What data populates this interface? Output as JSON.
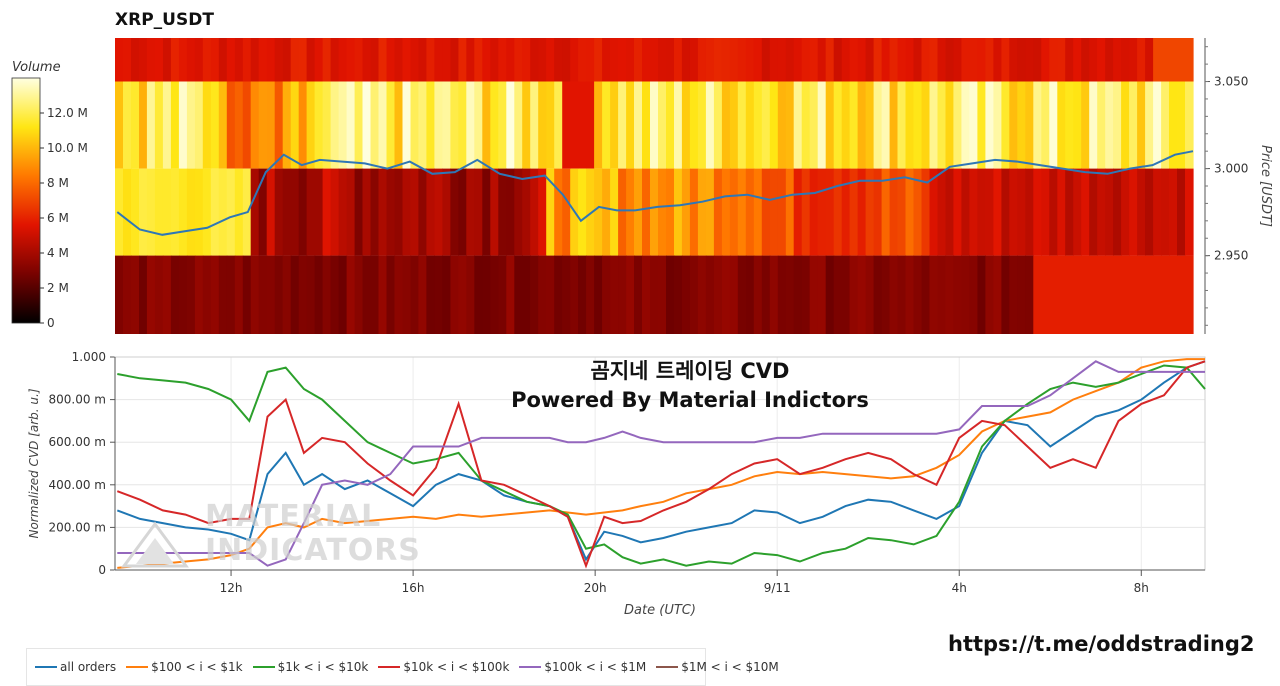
{
  "header": {
    "title": "XRP_USDT"
  },
  "heatmap": {
    "colorbar_label": "Volume",
    "colorbar_ticks": [
      "12.0 M",
      "10.0 M",
      "8 M",
      "6 M",
      "4 M",
      "2 M",
      "0"
    ],
    "y_label": "Price [USDT]",
    "y_ticks": [
      "3.050",
      "3.000",
      "2.950"
    ]
  },
  "overlay": {
    "line1": "곰지네 트레이딩 CVD",
    "line2": "Powered By Material Indictors"
  },
  "watermark": {
    "line1": "MATERIAL",
    "line2": "INDICATORS"
  },
  "link": "https://t.me/oddstrading2",
  "chart_data": [
    {
      "type": "heatmap",
      "title": "XRP_USDT",
      "ylabel": "Price [USDT]",
      "ylim": [
        2.905,
        3.075
      ],
      "colorbar": {
        "label": "Volume",
        "range": [
          0,
          14000000
        ]
      },
      "price_bands": [
        {
          "low": 3.05,
          "high": 3.075,
          "typical_volume": 5000000
        },
        {
          "low": 3.0,
          "high": 3.05,
          "typical_volume": 12500000
        },
        {
          "low": 2.95,
          "high": 3.0,
          "typical_volume": 3500000
        },
        {
          "low": 2.905,
          "high": 2.95,
          "typical_volume": 2000000
        }
      ],
      "price_line": {
        "name": "price",
        "x_hours": [
          9.5,
          10,
          10.5,
          11,
          11.5,
          12,
          12.4,
          12.8,
          13.2,
          13.6,
          14,
          14.5,
          15,
          15.5,
          16,
          16.5,
          17,
          17.5,
          18,
          18.5,
          19,
          19.4,
          19.8,
          20.2,
          20.6,
          21,
          21.5,
          22,
          22.5,
          23,
          23.5,
          24,
          24.5,
          25,
          25.5,
          26,
          26.5,
          27,
          27.5,
          28,
          28.5,
          29,
          29.5,
          30,
          30.5,
          31,
          31.5,
          32,
          32.5,
          33,
          33.4
        ],
        "y": [
          2.975,
          2.965,
          2.962,
          2.964,
          2.966,
          2.972,
          2.975,
          2.998,
          3.008,
          3.002,
          3.005,
          3.004,
          3.003,
          3.0,
          3.004,
          2.997,
          2.998,
          3.005,
          2.997,
          2.994,
          2.996,
          2.985,
          2.97,
          2.978,
          2.976,
          2.976,
          2.978,
          2.979,
          2.981,
          2.984,
          2.985,
          2.982,
          2.985,
          2.986,
          2.99,
          2.993,
          2.993,
          2.995,
          2.992,
          3.001,
          3.003,
          3.005,
          3.004,
          3.002,
          3.0,
          2.998,
          2.997,
          3.0,
          3.002,
          3.008,
          3.01
        ]
      }
    },
    {
      "type": "line",
      "xlabel": "Date (UTC)",
      "ylabel": "Normalized CVD [arb. u.]",
      "ylim": [
        0,
        1
      ],
      "x_tick_labels": [
        "12h",
        "16h",
        "20h",
        "9/11",
        "4h",
        "8h"
      ],
      "x_tick_hours": [
        12,
        16,
        20,
        24,
        28,
        32
      ],
      "xlim_hours": [
        9.45,
        33.4
      ],
      "y_tick_labels": [
        "0",
        "200.00 m",
        "400.00 m",
        "600.00 m",
        "800.00 m",
        "1.000"
      ],
      "y_ticks": [
        0,
        0.2,
        0.4,
        0.6,
        0.8,
        1.0
      ],
      "x_hours": [
        9.5,
        10,
        10.5,
        11,
        11.5,
        12,
        12.4,
        12.8,
        13.2,
        13.6,
        14,
        14.5,
        15,
        15.5,
        16,
        16.5,
        17,
        17.5,
        18,
        18.5,
        19,
        19.4,
        19.8,
        20.2,
        20.6,
        21,
        21.5,
        22,
        22.5,
        23,
        23.5,
        24,
        24.5,
        25,
        25.5,
        26,
        26.5,
        27,
        27.5,
        28,
        28.5,
        29,
        29.5,
        30,
        30.5,
        31,
        31.5,
        32,
        32.5,
        33,
        33.4
      ],
      "series": [
        {
          "name": "all orders",
          "color": "#1f77b4",
          "values": [
            0.28,
            0.24,
            0.22,
            0.2,
            0.19,
            0.17,
            0.14,
            0.45,
            0.55,
            0.4,
            0.45,
            0.38,
            0.42,
            0.36,
            0.3,
            0.4,
            0.45,
            0.42,
            0.35,
            0.32,
            0.3,
            0.25,
            0.05,
            0.18,
            0.16,
            0.13,
            0.15,
            0.18,
            0.2,
            0.22,
            0.28,
            0.27,
            0.22,
            0.25,
            0.3,
            0.33,
            0.32,
            0.28,
            0.24,
            0.3,
            0.55,
            0.7,
            0.68,
            0.58,
            0.65,
            0.72,
            0.75,
            0.8,
            0.88,
            0.95,
            0.98
          ]
        },
        {
          "name": "$100 < i < $1k",
          "color": "#ff7f0e",
          "values": [
            0.01,
            0.02,
            0.03,
            0.04,
            0.05,
            0.07,
            0.1,
            0.2,
            0.22,
            0.2,
            0.24,
            0.22,
            0.23,
            0.24,
            0.25,
            0.24,
            0.26,
            0.25,
            0.26,
            0.27,
            0.28,
            0.27,
            0.26,
            0.27,
            0.28,
            0.3,
            0.32,
            0.36,
            0.38,
            0.4,
            0.44,
            0.46,
            0.45,
            0.46,
            0.45,
            0.44,
            0.43,
            0.44,
            0.48,
            0.54,
            0.65,
            0.7,
            0.72,
            0.74,
            0.8,
            0.84,
            0.88,
            0.95,
            0.98,
            0.99,
            0.99
          ]
        },
        {
          "name": "$1k < i < $10k",
          "color": "#2ca02c",
          "values": [
            0.92,
            0.9,
            0.89,
            0.88,
            0.85,
            0.8,
            0.7,
            0.93,
            0.95,
            0.85,
            0.8,
            0.7,
            0.6,
            0.55,
            0.5,
            0.52,
            0.55,
            0.42,
            0.37,
            0.32,
            0.3,
            0.26,
            0.1,
            0.12,
            0.06,
            0.03,
            0.05,
            0.02,
            0.04,
            0.03,
            0.08,
            0.07,
            0.04,
            0.08,
            0.1,
            0.15,
            0.14,
            0.12,
            0.16,
            0.32,
            0.58,
            0.7,
            0.78,
            0.85,
            0.88,
            0.86,
            0.88,
            0.92,
            0.96,
            0.95,
            0.85
          ]
        },
        {
          "name": "$10k < i < $100k",
          "color": "#d62728",
          "values": [
            0.37,
            0.33,
            0.28,
            0.26,
            0.22,
            0.24,
            0.24,
            0.72,
            0.8,
            0.55,
            0.62,
            0.6,
            0.5,
            0.42,
            0.35,
            0.48,
            0.78,
            0.42,
            0.4,
            0.35,
            0.3,
            0.25,
            0.02,
            0.25,
            0.22,
            0.23,
            0.28,
            0.32,
            0.38,
            0.45,
            0.5,
            0.52,
            0.45,
            0.48,
            0.52,
            0.55,
            0.52,
            0.45,
            0.4,
            0.62,
            0.7,
            0.68,
            0.58,
            0.48,
            0.52,
            0.48,
            0.7,
            0.78,
            0.82,
            0.95,
            0.98
          ]
        },
        {
          "name": "$100k < i < $1M",
          "color": "#9467bd",
          "values": [
            0.08,
            0.08,
            0.08,
            0.08,
            0.08,
            0.08,
            0.08,
            0.02,
            0.05,
            0.22,
            0.4,
            0.42,
            0.4,
            0.45,
            0.58,
            0.58,
            0.58,
            0.62,
            0.62,
            0.62,
            0.62,
            0.6,
            0.6,
            0.62,
            0.65,
            0.62,
            0.6,
            0.6,
            0.6,
            0.6,
            0.6,
            0.62,
            0.62,
            0.64,
            0.64,
            0.64,
            0.64,
            0.64,
            0.64,
            0.66,
            0.77,
            0.77,
            0.77,
            0.82,
            0.9,
            0.98,
            0.93,
            0.93,
            0.93,
            0.93,
            0.93
          ]
        },
        {
          "name": "$1M < i < $10M",
          "color": "#8c564b",
          "values": []
        }
      ]
    }
  ]
}
